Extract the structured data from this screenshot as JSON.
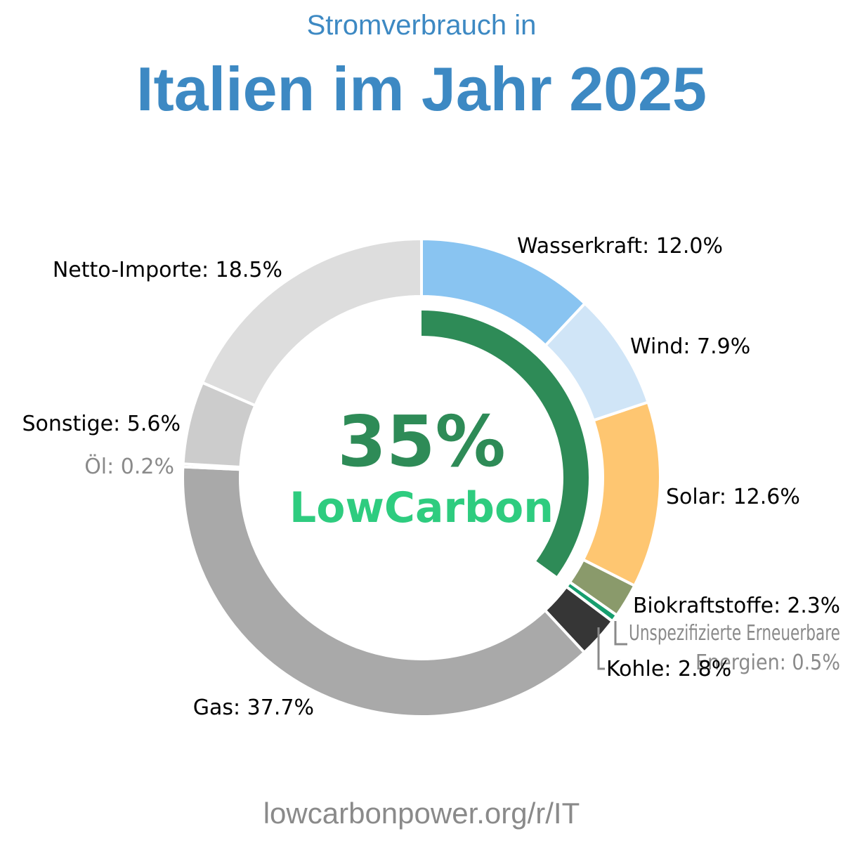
{
  "header": {
    "subtitle": "Stromverbrauch in",
    "title": "Italien im Jahr 2025"
  },
  "center": {
    "percent": "35%",
    "brand": "LowCarbon",
    "percent_color": "#2e8b57",
    "brand_color": "#2ecc7f"
  },
  "footer": {
    "url": "lowcarbonpower.org/r/IT"
  },
  "chart_data": {
    "type": "pie",
    "style": "donut",
    "title": "Italien im Jahr 2025",
    "low_carbon_share": 35,
    "slices": [
      {
        "name": "Wasserkraft",
        "value": 12.0,
        "label": "Wasserkraft: 12.0%",
        "color": "#89c4f1",
        "label_color": "#000000"
      },
      {
        "name": "Wind",
        "value": 7.9,
        "label": "Wind: 7.9%",
        "color": "#d0e5f7",
        "label_color": "#000000"
      },
      {
        "name": "Solar",
        "value": 12.6,
        "label": "Solar: 12.6%",
        "color": "#fec671",
        "label_color": "#000000"
      },
      {
        "name": "Biokraftstoffe",
        "value": 2.3,
        "label": "Biokraftstoffe: 2.3%",
        "color": "#8a9a6b",
        "label_color": "#000000"
      },
      {
        "name": "Unspezifizierte Erneuerbare Energien",
        "value": 0.5,
        "label": "Unspezifizierte Erneuerbare",
        "label2": "Energien: 0.5%",
        "color": "#169e6e",
        "label_color": "#8a8a8a"
      },
      {
        "name": "Kohle",
        "value": 2.8,
        "label": "Kohle: 2.8%",
        "color": "#363636",
        "label_color": "#000000"
      },
      {
        "name": "Gas",
        "value": 37.7,
        "label": "Gas: 37.7%",
        "color": "#a9a9a9",
        "label_color": "#000000"
      },
      {
        "name": "Öl",
        "value": 0.2,
        "label": "Öl: 0.2%",
        "color": "#9a9a9a",
        "label_color": "#8a8a8a"
      },
      {
        "name": "Sonstige",
        "value": 5.6,
        "label": "Sonstige: 5.6%",
        "color": "#cccccc",
        "label_color": "#000000"
      },
      {
        "name": "Netto-Importe",
        "value": 18.5,
        "label": "Netto-Importe: 18.5%",
        "color": "#dddddd",
        "label_color": "#000000"
      }
    ]
  }
}
